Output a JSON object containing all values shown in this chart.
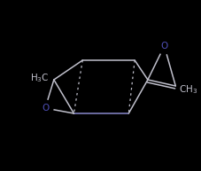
{
  "bg_color": "#000000",
  "line_color": "#c0c0cc",
  "text_color": "#c0c0cc",
  "o_color": "#5050b8",
  "figsize": [
    2.28,
    1.93
  ],
  "dpi": 100,
  "lw_solid": 1.1,
  "lw_dot": 0.9,
  "dot_pattern": [
    2,
    3
  ],
  "font_size": 7.5
}
